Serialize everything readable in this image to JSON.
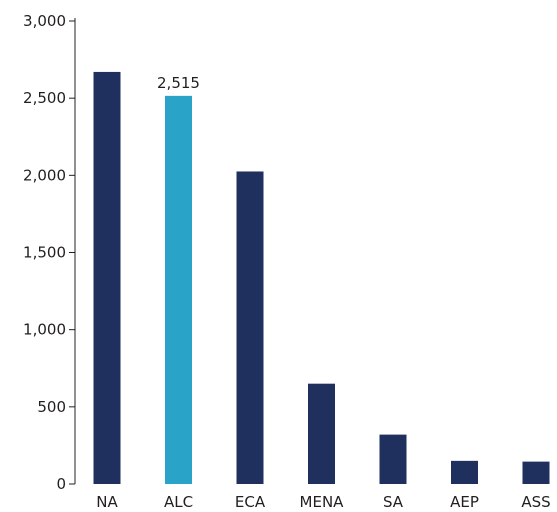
{
  "chart_data": {
    "type": "bar",
    "categories": [
      "NA",
      "ALC",
      "ECA",
      "MENA",
      "SA",
      "AEP",
      "ASS"
    ],
    "values": [
      2670,
      2515,
      2025,
      650,
      320,
      150,
      145
    ],
    "highlight_index": 1,
    "data_labels": [
      {
        "index": 1,
        "text": "2,515"
      }
    ],
    "y_ticks": [
      {
        "value": 0,
        "label": "0"
      },
      {
        "value": 500,
        "label": "500"
      },
      {
        "value": 1000,
        "label": "1,000"
      },
      {
        "value": 1500,
        "label": "1,500"
      },
      {
        "value": 2000,
        "label": "2,000"
      },
      {
        "value": 2500,
        "label": "2,500"
      },
      {
        "value": 3000,
        "label": "3,000"
      }
    ],
    "ylim": [
      0,
      3000
    ],
    "grid": false,
    "colors": {
      "bar": "#1f2f5e",
      "highlight": "#2aa3c9",
      "axis": "#231f20"
    }
  }
}
